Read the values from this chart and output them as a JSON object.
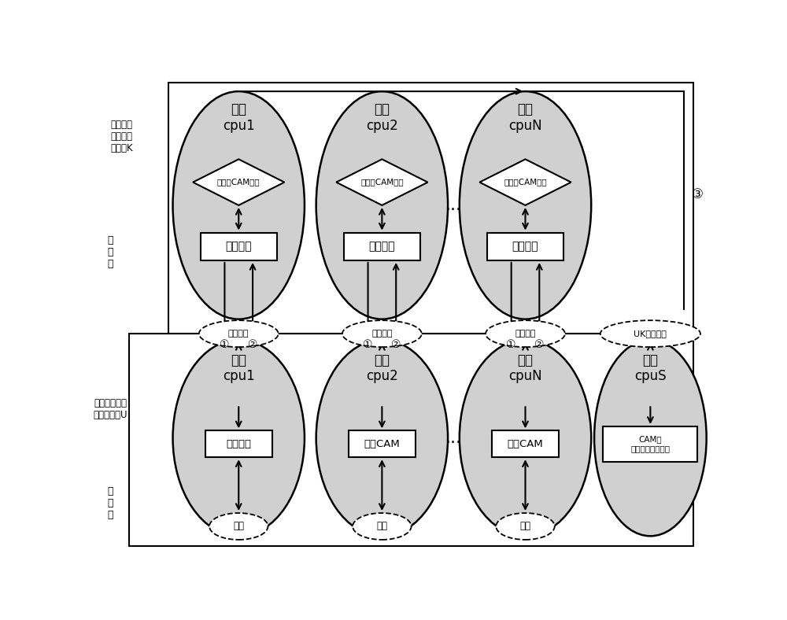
{
  "bg_color": "#ffffff",
  "ellipse_fill": "#d0d0d0",
  "top_label_left": "实现复杂\n功能的慢\n速模块K",
  "kernel_label": "内\n核\n态",
  "bottom_label_left": "基于会话转发\n的快速模块U",
  "user_label": "用\n户\n态",
  "slow_titles": [
    "慢速\ncpu1",
    "慢速\ncpu2",
    "慢速\ncpuN"
  ],
  "fast_titles": [
    "快速\ncpu1",
    "快速\ncpu2",
    "快速\ncpuN",
    "快速\ncpuS"
  ],
  "diamond_text": "需新建CAM表项",
  "slow_box_text": "策略匹配",
  "fast_box_texts": [
    "新建会话",
    "新建CAM",
    "新建CAM",
    "CAM表\n会话新建维护模块"
  ],
  "channel_text": "通道模块",
  "uk_channel_text": "UK通道模块",
  "nic_text": "网卡",
  "dots": "..."
}
